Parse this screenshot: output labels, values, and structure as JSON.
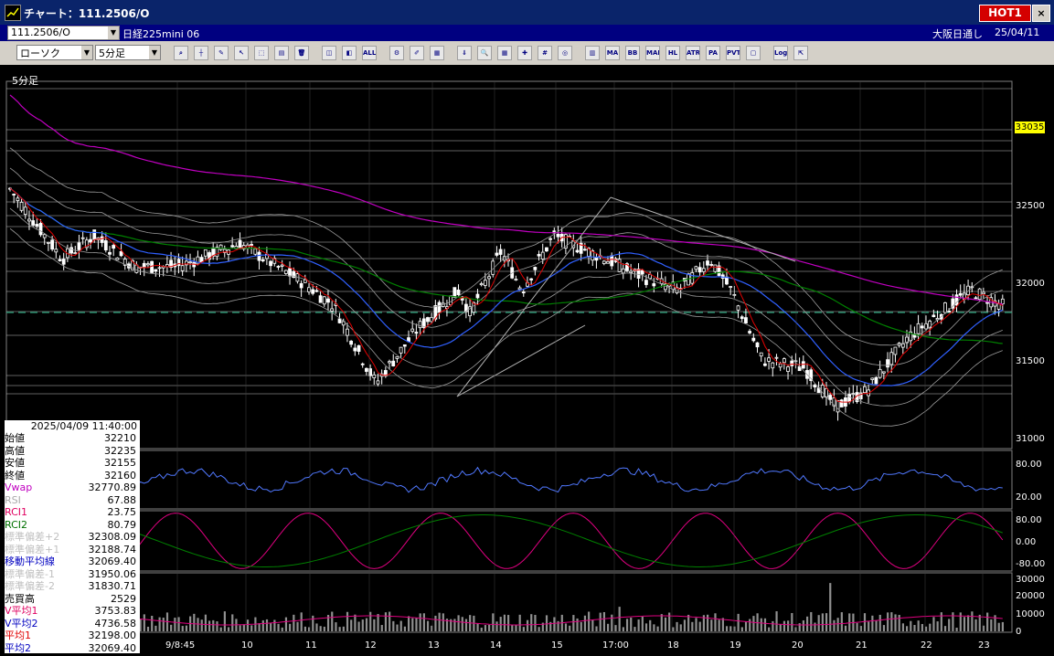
{
  "window": {
    "title": "チャート：111.2506/O",
    "hot_label": "HOT1",
    "close_label": "×"
  },
  "info": {
    "symbol": "111.2506/O",
    "instrument": "日経225mini 06",
    "exchange": "大阪日通し",
    "date": "25/04/11"
  },
  "toolbar": {
    "chart_type": "ローソク",
    "period": "5分足",
    "buttons": [
      "zoom",
      "cross",
      "pen",
      "arrow",
      "select",
      "copy",
      "trash",
      "box1",
      "box2",
      "all",
      "gear",
      "brush",
      "palette",
      "down",
      "search",
      "table",
      "mark",
      "hash",
      "eye",
      "volume",
      "ma",
      "bb",
      "mae",
      "hl",
      "atr",
      "pa",
      "pvt",
      "window",
      "log",
      "export"
    ]
  },
  "pane_title": "5分足",
  "price_axis": {
    "labels": [
      "32500",
      "32000",
      "31500",
      "31000"
    ],
    "highlight": "33035"
  },
  "rsi_axis": {
    "labels": [
      "80.00",
      "20.00"
    ]
  },
  "rci_axis": {
    "labels": [
      "80.00",
      "0.00",
      "-80.00"
    ]
  },
  "vol_axis": {
    "labels": [
      "30000",
      "20000",
      "10000",
      "0"
    ]
  },
  "time_axis": [
    "9/8:45",
    "10",
    "11",
    "12",
    "13",
    "14",
    "15",
    "17:00",
    "18",
    "19",
    "20",
    "21",
    "22",
    "23"
  ],
  "panel": {
    "timestamp": "2025/04/09 11:40:00",
    "rows": [
      {
        "k": "始値",
        "v": "32210",
        "kc": "#000",
        "vc": "#000"
      },
      {
        "k": "高値",
        "v": "32235",
        "kc": "#000",
        "vc": "#000"
      },
      {
        "k": "安値",
        "v": "32155",
        "kc": "#000",
        "vc": "#000"
      },
      {
        "k": "終値",
        "v": "32160",
        "kc": "#000",
        "vc": "#000"
      },
      {
        "k": "Vwap",
        "v": "32770.89",
        "kc": "#c000c0",
        "vc": "#000"
      },
      {
        "k": "RSI",
        "v": "67.88",
        "kc": "#aaaaaa",
        "vc": "#000"
      },
      {
        "k": "RCI1",
        "v": "23.75",
        "kc": "#e00060",
        "vc": "#000"
      },
      {
        "k": "RCI2",
        "v": "80.79",
        "kc": "#007000",
        "vc": "#000"
      },
      {
        "k": "標準偏差+2",
        "v": "32308.09",
        "kc": "#c0c0c0",
        "vc": "#000"
      },
      {
        "k": "標準偏差+1",
        "v": "32188.74",
        "kc": "#c0c0c0",
        "vc": "#000"
      },
      {
        "k": "移動平均線",
        "v": "32069.40",
        "kc": "#0000c0",
        "vc": "#000"
      },
      {
        "k": "標準偏差-1",
        "v": "31950.06",
        "kc": "#c0c0c0",
        "vc": "#000"
      },
      {
        "k": "標準偏差-2",
        "v": "31830.71",
        "kc": "#c0c0c0",
        "vc": "#000"
      },
      {
        "k": "売買高",
        "v": "2529",
        "kc": "#000",
        "vc": "#000"
      },
      {
        "k": "V平均1",
        "v": "3753.83",
        "kc": "#e00060",
        "vc": "#000"
      },
      {
        "k": "V平均2",
        "v": "4736.58",
        "kc": "#0000c0",
        "vc": "#000"
      },
      {
        "k": "平均1",
        "v": "32198.00",
        "kc": "#e00000",
        "vc": "#000"
      },
      {
        "k": "平均2",
        "v": "32069.40",
        "kc": "#0000c0",
        "vc": "#000"
      }
    ]
  }
}
